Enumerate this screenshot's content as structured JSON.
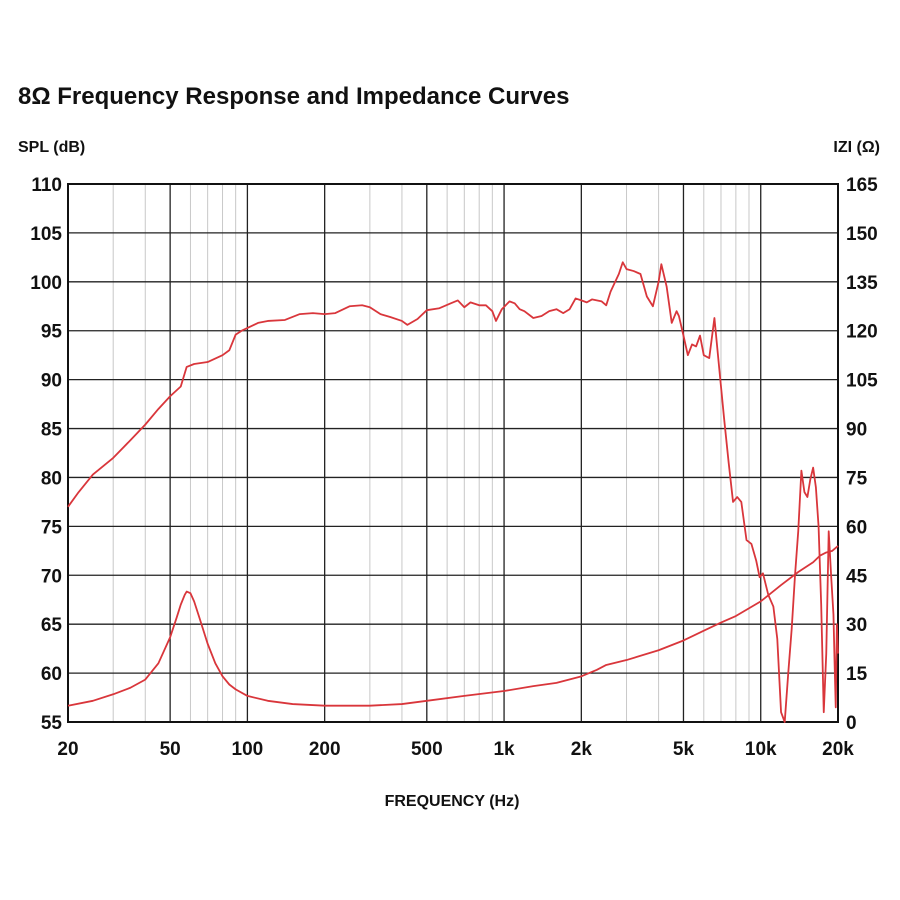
{
  "chart_data": {
    "type": "line",
    "title": "8Ω Frequency Response and Impedance Curves",
    "xlabel": "FREQUENCY (Hz)",
    "ylabel": "SPL (dB)",
    "y2label": "IZI (Ω)",
    "xscale": "log",
    "xlim": [
      20,
      20000
    ],
    "ylim": [
      55,
      110
    ],
    "y2lim": [
      0,
      165
    ],
    "grid": true,
    "x_ticks": [
      {
        "value": 20,
        "label": "20"
      },
      {
        "value": 50,
        "label": "50"
      },
      {
        "value": 100,
        "label": "100"
      },
      {
        "value": 200,
        "label": "200"
      },
      {
        "value": 500,
        "label": "500"
      },
      {
        "value": 1000,
        "label": "1k"
      },
      {
        "value": 2000,
        "label": "2k"
      },
      {
        "value": 5000,
        "label": "5k"
      },
      {
        "value": 10000,
        "label": "10k"
      },
      {
        "value": 20000,
        "label": "20k"
      }
    ],
    "y_ticks": [
      {
        "value": 110,
        "label": "110"
      },
      {
        "value": 105,
        "label": "105"
      },
      {
        "value": 100,
        "label": "100"
      },
      {
        "value": 95,
        "label": "95"
      },
      {
        "value": 90,
        "label": "90"
      },
      {
        "value": 85,
        "label": "85"
      },
      {
        "value": 80,
        "label": "80"
      },
      {
        "value": 75,
        "label": "75"
      },
      {
        "value": 70,
        "label": "70"
      },
      {
        "value": 65,
        "label": "65"
      },
      {
        "value": 60,
        "label": "60"
      },
      {
        "value": 55,
        "label": "55"
      }
    ],
    "y2_ticks": [
      {
        "value": 165,
        "label": "165"
      },
      {
        "value": 150,
        "label": "150"
      },
      {
        "value": 135,
        "label": "135"
      },
      {
        "value": 120,
        "label": "120"
      },
      {
        "value": 105,
        "label": "105"
      },
      {
        "value": 90,
        "label": "90"
      },
      {
        "value": 75,
        "label": "75"
      },
      {
        "value": 60,
        "label": "60"
      },
      {
        "value": 45,
        "label": "45"
      },
      {
        "value": 30,
        "label": "30"
      },
      {
        "value": 15,
        "label": "15"
      },
      {
        "value": 0,
        "label": "0"
      }
    ],
    "series": [
      {
        "name": "SPL",
        "axis": "left",
        "color": "#d9363b",
        "points": [
          [
            20,
            77.0
          ],
          [
            22,
            78.5
          ],
          [
            25,
            80.3
          ],
          [
            30,
            82.0
          ],
          [
            35,
            83.8
          ],
          [
            40,
            85.4
          ],
          [
            45,
            87.0
          ],
          [
            50,
            88.3
          ],
          [
            55,
            89.3
          ],
          [
            58,
            91.3
          ],
          [
            62,
            91.6
          ],
          [
            70,
            91.8
          ],
          [
            80,
            92.5
          ],
          [
            85,
            93.0
          ],
          [
            90,
            94.6
          ],
          [
            95,
            95.0
          ],
          [
            110,
            95.8
          ],
          [
            120,
            96.0
          ],
          [
            140,
            96.1
          ],
          [
            160,
            96.7
          ],
          [
            180,
            96.8
          ],
          [
            200,
            96.7
          ],
          [
            220,
            96.8
          ],
          [
            250,
            97.5
          ],
          [
            280,
            97.6
          ],
          [
            300,
            97.4
          ],
          [
            330,
            96.7
          ],
          [
            360,
            96.4
          ],
          [
            400,
            96.0
          ],
          [
            420,
            95.6
          ],
          [
            460,
            96.2
          ],
          [
            500,
            97.1
          ],
          [
            560,
            97.3
          ],
          [
            620,
            97.8
          ],
          [
            660,
            98.1
          ],
          [
            700,
            97.4
          ],
          [
            740,
            97.9
          ],
          [
            800,
            97.6
          ],
          [
            850,
            97.6
          ],
          [
            900,
            97.0
          ],
          [
            930,
            96.0
          ],
          [
            980,
            97.2
          ],
          [
            1050,
            98.0
          ],
          [
            1100,
            97.8
          ],
          [
            1150,
            97.2
          ],
          [
            1200,
            97.0
          ],
          [
            1300,
            96.3
          ],
          [
            1400,
            96.5
          ],
          [
            1500,
            97.0
          ],
          [
            1600,
            97.2
          ],
          [
            1700,
            96.8
          ],
          [
            1800,
            97.2
          ],
          [
            1900,
            98.3
          ],
          [
            2000,
            98.1
          ],
          [
            2100,
            97.9
          ],
          [
            2200,
            98.2
          ],
          [
            2400,
            98.0
          ],
          [
            2500,
            97.6
          ],
          [
            2600,
            99.0
          ],
          [
            2800,
            100.8
          ],
          [
            2900,
            102.0
          ],
          [
            3000,
            101.3
          ],
          [
            3200,
            101.1
          ],
          [
            3400,
            100.8
          ],
          [
            3600,
            98.5
          ],
          [
            3800,
            97.5
          ],
          [
            4000,
            100.0
          ],
          [
            4100,
            101.8
          ],
          [
            4300,
            99.5
          ],
          [
            4500,
            95.8
          ],
          [
            4700,
            97.0
          ],
          [
            4800,
            96.5
          ],
          [
            5000,
            94.5
          ],
          [
            5200,
            92.5
          ],
          [
            5400,
            93.6
          ],
          [
            5600,
            93.4
          ],
          [
            5800,
            94.5
          ],
          [
            6000,
            92.5
          ],
          [
            6300,
            92.2
          ],
          [
            6600,
            96.3
          ],
          [
            6900,
            91.0
          ],
          [
            7200,
            86.0
          ],
          [
            7500,
            81.5
          ],
          [
            7800,
            77.5
          ],
          [
            8100,
            78.0
          ],
          [
            8400,
            77.5
          ],
          [
            8800,
            73.6
          ],
          [
            9200,
            73.2
          ],
          [
            9600,
            71.5
          ],
          [
            9900,
            69.8
          ],
          [
            10200,
            70.2
          ],
          [
            10700,
            68.0
          ],
          [
            11200,
            66.8
          ],
          [
            11600,
            63.5
          ],
          [
            12000,
            56.0
          ],
          [
            12400,
            55.0
          ],
          [
            12800,
            60.0
          ],
          [
            13200,
            64.5
          ],
          [
            13600,
            70.0
          ],
          [
            14000,
            74.5
          ],
          [
            14400,
            80.7
          ],
          [
            14800,
            78.5
          ],
          [
            15200,
            78.0
          ],
          [
            15600,
            79.8
          ],
          [
            16000,
            81.0
          ],
          [
            16400,
            79.0
          ],
          [
            16800,
            75.0
          ],
          [
            17200,
            67.0
          ],
          [
            17600,
            56.0
          ],
          [
            18000,
            62.0
          ],
          [
            18400,
            74.5
          ],
          [
            18800,
            70.0
          ],
          [
            19200,
            66.0
          ],
          [
            19400,
            61.0
          ],
          [
            19600,
            56.5
          ],
          [
            19800,
            65.0
          ],
          [
            20000,
            62.0
          ]
        ]
      },
      {
        "name": "Impedance",
        "axis": "right",
        "color": "#d9363b",
        "points": [
          [
            20,
            5.0
          ],
          [
            25,
            6.5
          ],
          [
            30,
            8.5
          ],
          [
            35,
            10.5
          ],
          [
            40,
            13.0
          ],
          [
            45,
            18.0
          ],
          [
            50,
            26.0
          ],
          [
            53,
            32.0
          ],
          [
            55,
            36.0
          ],
          [
            57,
            39.0
          ],
          [
            58,
            40.0
          ],
          [
            60,
            39.5
          ],
          [
            62,
            37.0
          ],
          [
            65,
            32.0
          ],
          [
            70,
            24.0
          ],
          [
            75,
            18.0
          ],
          [
            80,
            14.0
          ],
          [
            85,
            11.5
          ],
          [
            90,
            10.0
          ],
          [
            100,
            8.0
          ],
          [
            120,
            6.5
          ],
          [
            150,
            5.5
          ],
          [
            200,
            5.0
          ],
          [
            300,
            5.0
          ],
          [
            400,
            5.5
          ],
          [
            500,
            6.5
          ],
          [
            700,
            8.0
          ],
          [
            1000,
            9.5
          ],
          [
            1300,
            11.0
          ],
          [
            1600,
            12.0
          ],
          [
            2000,
            14.0
          ],
          [
            2300,
            16.0
          ],
          [
            2500,
            17.5
          ],
          [
            3000,
            19.0
          ],
          [
            4000,
            22.0
          ],
          [
            5000,
            25.0
          ],
          [
            6000,
            28.0
          ],
          [
            7000,
            30.5
          ],
          [
            8000,
            32.5
          ],
          [
            10000,
            37.0
          ],
          [
            12000,
            42.0
          ],
          [
            14000,
            46.0
          ],
          [
            16000,
            49.0
          ],
          [
            17000,
            51.0
          ],
          [
            18000,
            52.0
          ],
          [
            19000,
            52.5
          ],
          [
            20000,
            54.0
          ]
        ]
      }
    ]
  }
}
